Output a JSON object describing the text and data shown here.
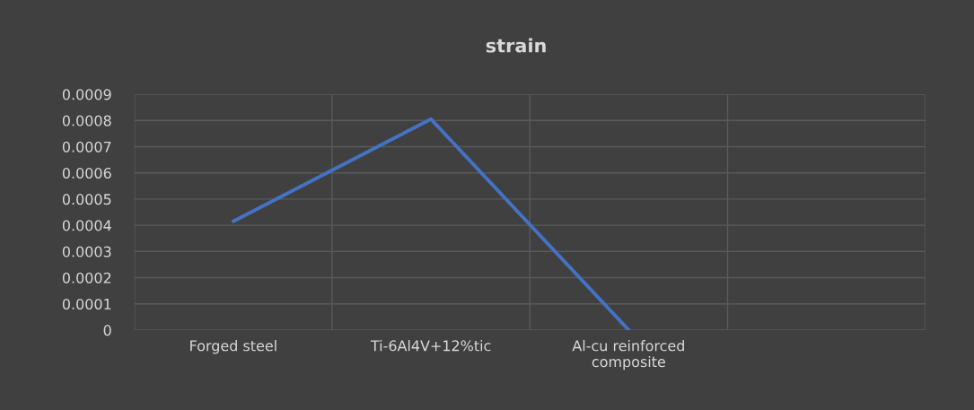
{
  "chart_data": {
    "type": "line",
    "title": "strain",
    "categories": [
      "Forged steel",
      "Ti-6Al4V+12%tic",
      "Al-cu reinforced\ncomposite",
      null
    ],
    "series": [
      {
        "color": "#4472c4",
        "values": [
          0.000415,
          0.000805,
          0.0,
          null
        ]
      }
    ],
    "ylim": [
      0,
      0.0009
    ],
    "yticks": [
      {
        "value": 0,
        "label": "0"
      },
      {
        "value": 0.0001,
        "label": "0.0001"
      },
      {
        "value": 0.0002,
        "label": "0.0002"
      },
      {
        "value": 0.0003,
        "label": "0.0003"
      },
      {
        "value": 0.0004,
        "label": "0.0004"
      },
      {
        "value": 0.0005,
        "label": "0.0005"
      },
      {
        "value": 0.0006,
        "label": "0.0006"
      },
      {
        "value": 0.0007,
        "label": "0.0007"
      },
      {
        "value": 0.0008,
        "label": "0.0008"
      },
      {
        "value": 0.0009,
        "label": "0.0009"
      }
    ],
    "grid": true,
    "marker": "none",
    "line_style": "solid",
    "legend": false
  }
}
